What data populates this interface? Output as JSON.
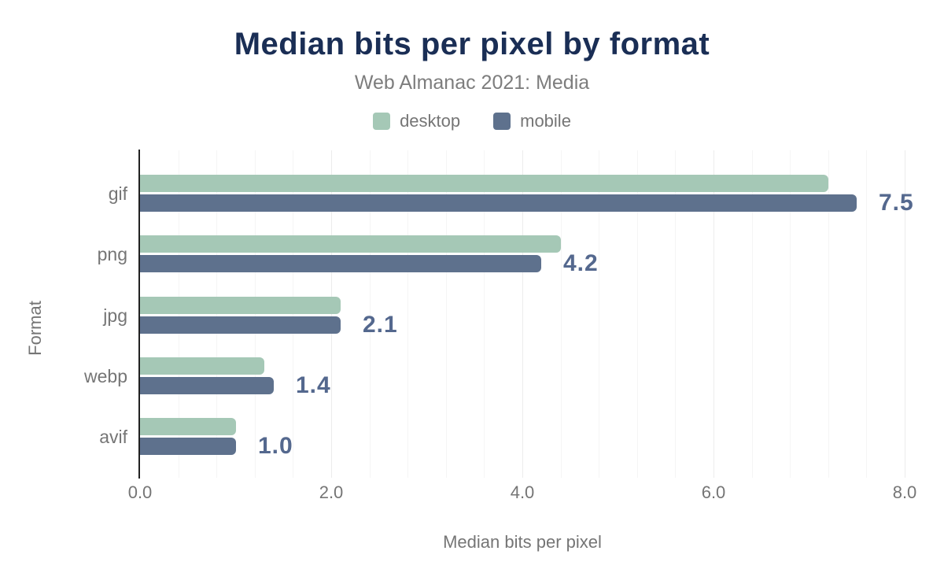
{
  "header": {
    "title": "Median bits per pixel by format",
    "subtitle": "Web Almanac 2021: Media"
  },
  "chart_data": {
    "type": "bar",
    "orientation": "horizontal",
    "title": "Median bits per pixel by format",
    "subtitle": "Web Almanac 2021: Media",
    "xlabel": "Median bits per pixel",
    "ylabel": "Format",
    "categories": [
      "gif",
      "png",
      "jpg",
      "webp",
      "avif"
    ],
    "series": [
      {
        "name": "desktop",
        "color": "#a5c8b6",
        "values": [
          7.2,
          4.4,
          2.1,
          1.3,
          1.0
        ]
      },
      {
        "name": "mobile",
        "color": "#5e718d",
        "values": [
          7.5,
          4.2,
          2.1,
          1.4,
          1.0
        ]
      }
    ],
    "value_labels": {
      "series": "mobile",
      "values": [
        "7.5",
        "4.2",
        "2.1",
        "1.4",
        "1.0"
      ]
    },
    "xlim": [
      0,
      8
    ],
    "xticks": [
      "0.0",
      "2.0",
      "4.0",
      "6.0",
      "8.0"
    ],
    "minor_grid_step": 0.4,
    "grid": "vertical",
    "legend_position": "top"
  },
  "colors": {
    "title": "#1a2e55",
    "muted_text": "#757575",
    "desktop": "#a5c8b6",
    "mobile": "#5e718d",
    "value_label": "#54688e",
    "axis_line": "#212121",
    "grid_minor": "#f5f5f5",
    "grid_major": "#ececec",
    "background": "#ffffff"
  }
}
